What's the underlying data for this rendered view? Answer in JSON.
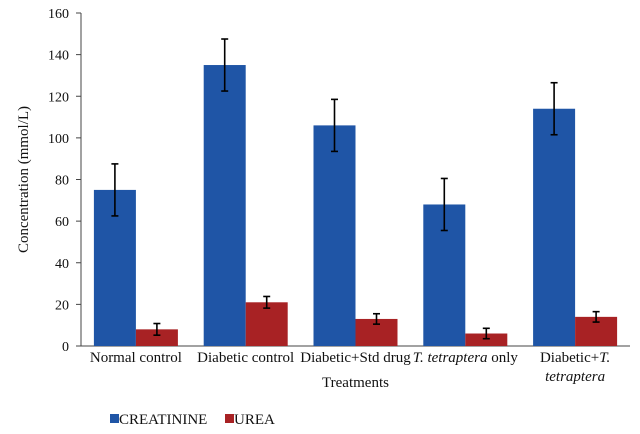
{
  "chart_data": {
    "type": "bar",
    "xlabel": "Treatments",
    "ylabel": "Concentration (mmol/L)",
    "ylim": [
      0,
      160
    ],
    "yticks": [
      0,
      20,
      40,
      60,
      80,
      100,
      120,
      140,
      160
    ],
    "grid": false,
    "legend_position": "bottom-left",
    "categories": [
      {
        "parts": [
          {
            "text": "Normal control",
            "italic": false
          }
        ]
      },
      {
        "parts": [
          {
            "text": "Diabetic control",
            "italic": false
          }
        ]
      },
      {
        "parts": [
          {
            "text": "Diabetic+Std drug",
            "italic": false
          }
        ]
      },
      {
        "parts": [
          {
            "text": "T. tetraptera",
            "italic": true
          },
          {
            "text": " only",
            "italic": false
          }
        ]
      },
      {
        "lines": [
          [
            {
              "text": "Diabetic+",
              "italic": false
            },
            {
              "text": "T.",
              "italic": true
            }
          ],
          [
            {
              "text": "tetraptera",
              "italic": true
            }
          ]
        ]
      }
    ],
    "series": [
      {
        "name": "CREATININE",
        "color": "#1f55a6",
        "values": [
          75,
          135,
          106,
          68,
          114
        ],
        "errors": [
          12.5,
          12.5,
          12.5,
          12.5,
          12.5
        ]
      },
      {
        "name": "UREA",
        "color": "#a82224",
        "values": [
          8,
          21,
          13,
          6,
          14
        ],
        "errors": [
          2.8,
          2.8,
          2.5,
          2.5,
          2.5
        ]
      }
    ]
  }
}
